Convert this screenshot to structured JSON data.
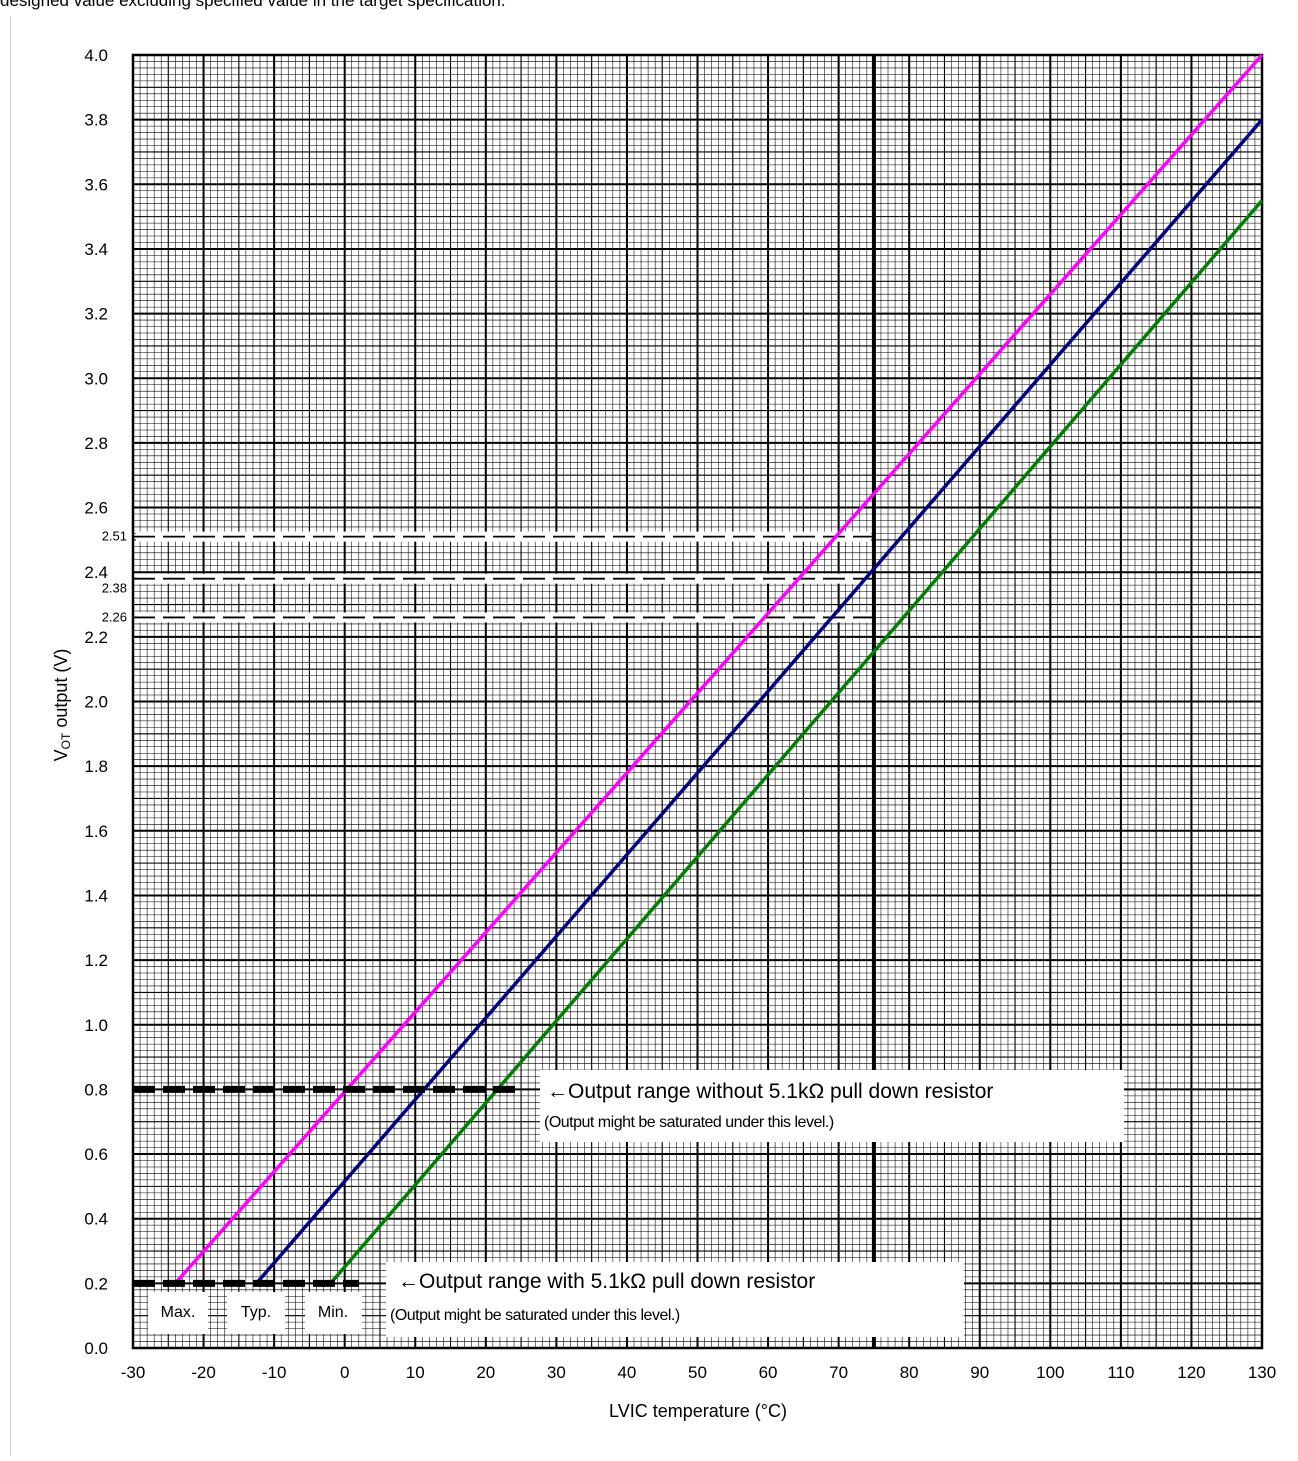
{
  "caption": "designed value excluding specified value in the target specification.",
  "chart_data": {
    "type": "line",
    "xlabel": "LVIC temperature (°C)",
    "ylabel_main": "V",
    "ylabel_sub": "OT",
    "ylabel_rest": " output (V)",
    "xlim": [
      -30,
      130
    ],
    "ylim": [
      0.0,
      4.0
    ],
    "x_ticks": [
      "-30",
      "-20",
      "-10",
      "0",
      "10",
      "20",
      "30",
      "40",
      "50",
      "60",
      "70",
      "80",
      "90",
      "100",
      "110",
      "120",
      "130"
    ],
    "y_ticks": [
      "0.0",
      "0.2",
      "0.4",
      "0.6",
      "0.8",
      "1.0",
      "1.2",
      "1.4",
      "1.6",
      "1.8",
      "2.0",
      "2.2",
      "2.4",
      "2.6",
      "2.8",
      "3.0",
      "3.2",
      "3.4",
      "3.6",
      "3.8",
      "4.0"
    ],
    "grid": "on",
    "series": [
      {
        "name": "Max.",
        "color": "#ff00ff",
        "x": [
          -24.0,
          130.0
        ],
        "y": [
          0.2,
          4.0
        ]
      },
      {
        "name": "Typ.",
        "color": "#000080",
        "x": [
          -12.5,
          130.0
        ],
        "y": [
          0.2,
          3.8
        ]
      },
      {
        "name": "Min.",
        "color": "#008000",
        "x": [
          -2.0,
          130.0
        ],
        "y": [
          0.2,
          3.55
        ]
      }
    ],
    "reference_lines": [
      {
        "label": "2.51",
        "y": 2.51,
        "x_end": 75
      },
      {
        "label": "2.38",
        "y": 2.38,
        "x_end": 75
      },
      {
        "label": "2.26",
        "y": 2.26,
        "x_end": 75
      }
    ],
    "vertical_marker": {
      "x": 75
    },
    "saturation_levels": [
      {
        "y": 0.8,
        "x_end": 25,
        "text": "←Output range without 5.1kΩ pull down resistor",
        "note": "(Output might be saturated under this level.)"
      },
      {
        "y": 0.2,
        "x_end": 2,
        "text": "←Output range with 5.1kΩ pull down resistor",
        "note": "(Output might be saturated under this level.)"
      }
    ]
  }
}
